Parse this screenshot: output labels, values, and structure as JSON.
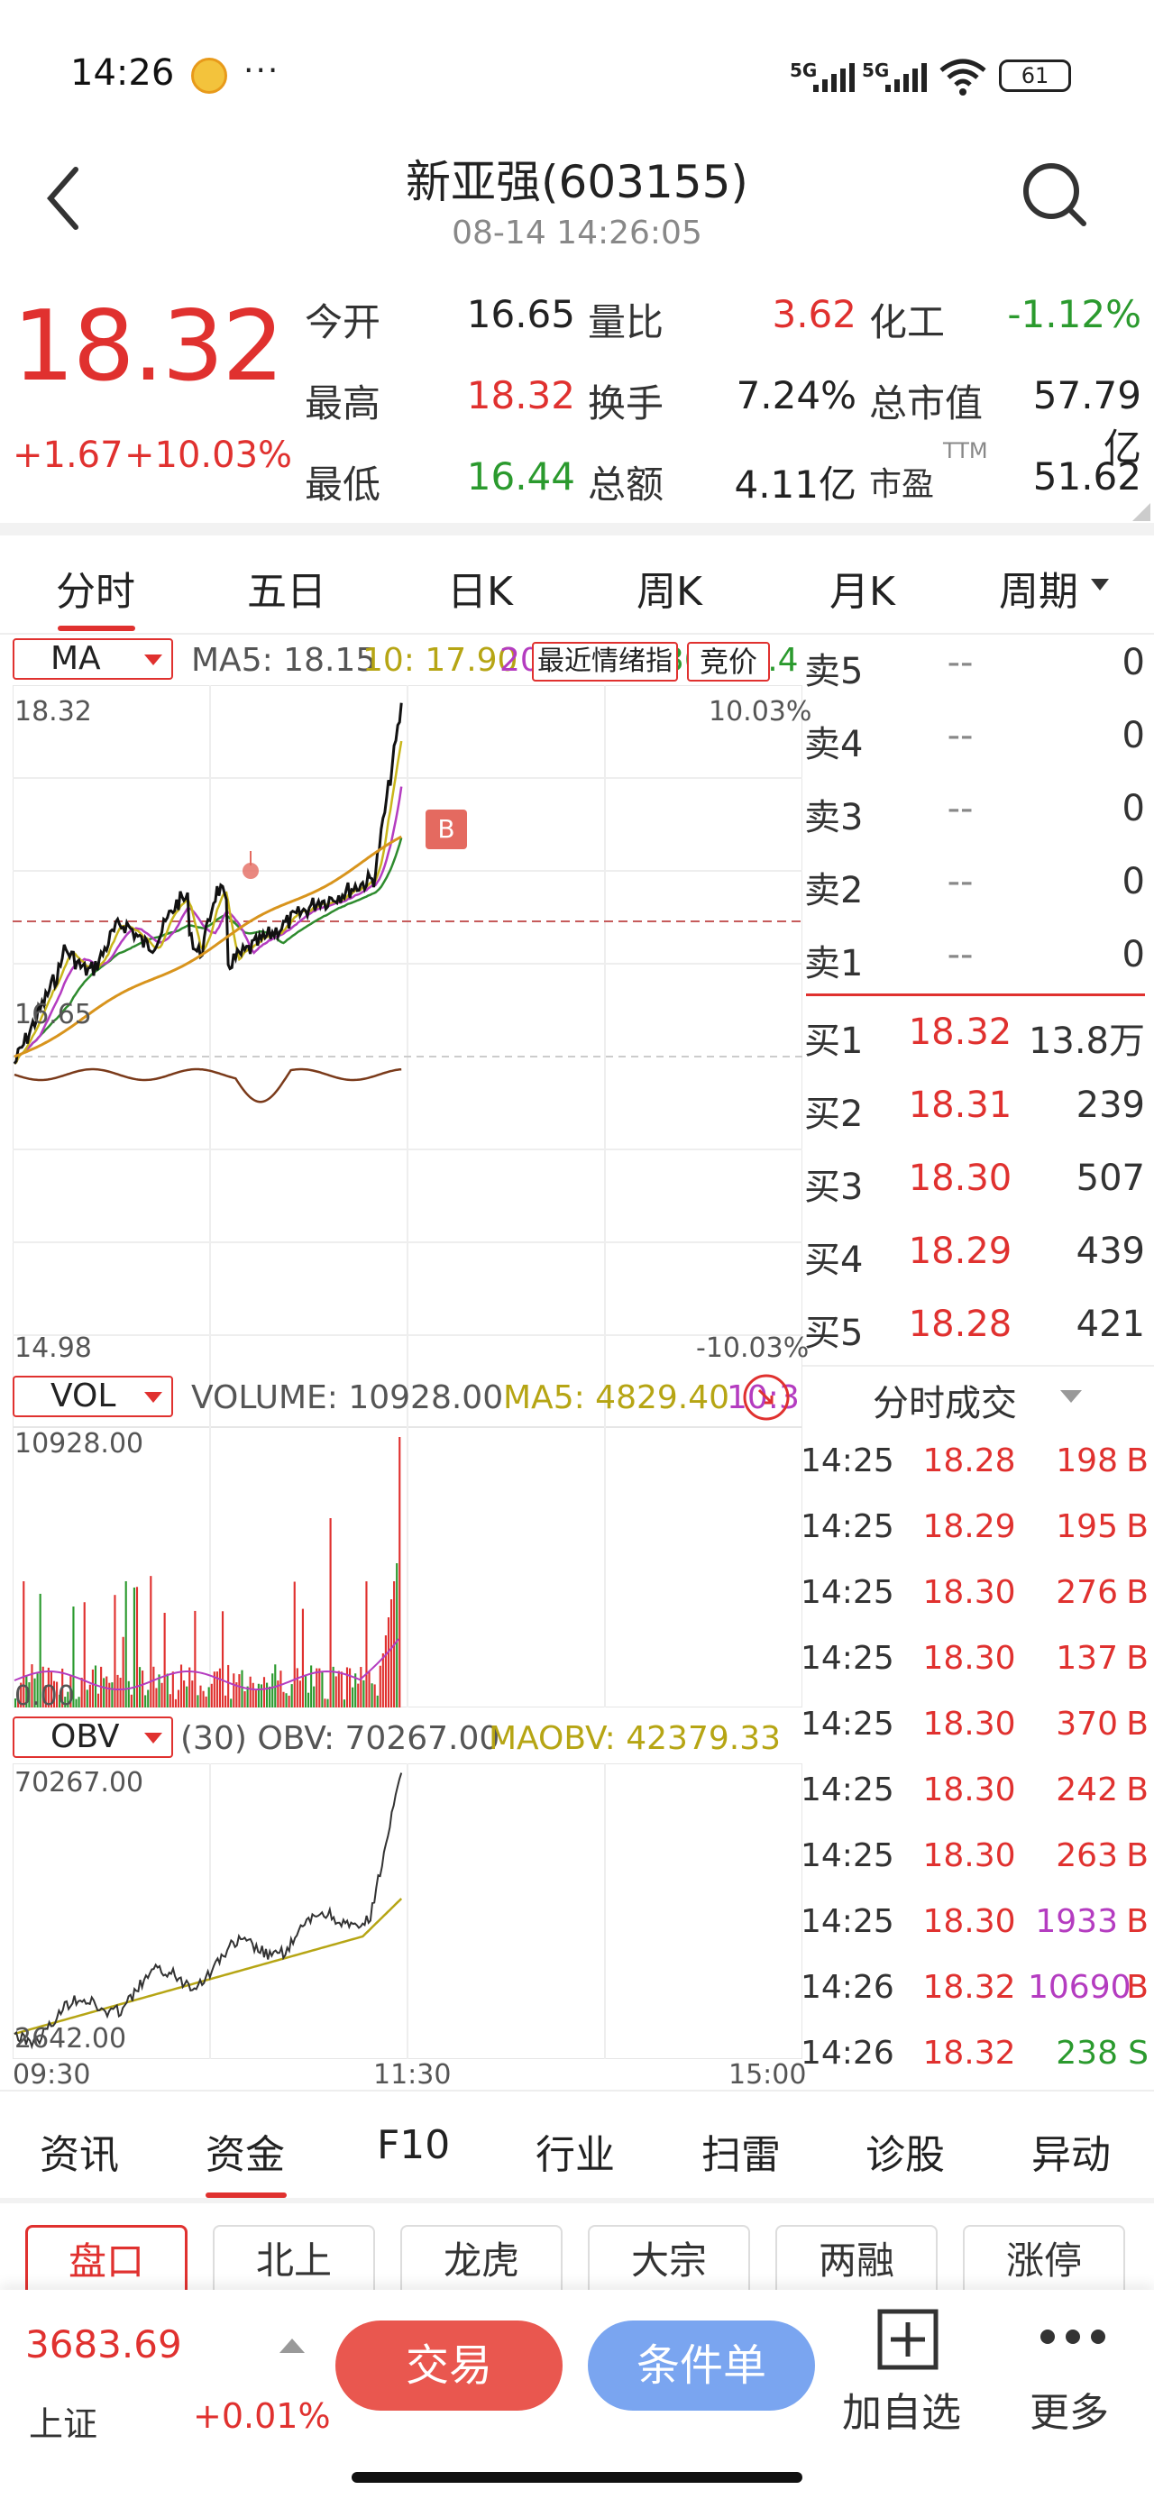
{
  "status": {
    "time": "14:26",
    "dots": "···",
    "sig1": "5G",
    "sig2": "5G",
    "battery": "61"
  },
  "header": {
    "title": "新亚强(603155)",
    "subtime": "08-14 14:26:05"
  },
  "quote": {
    "price": "18.32",
    "change": "+1.67",
    "change_pct": "+10.03%",
    "rows": [
      {
        "l1": "今开",
        "v1": "16.65",
        "c1": "#222222",
        "l2": "量比",
        "v2": "3.62",
        "c2": "#e0312f",
        "l3": "化工",
        "v3": "-1.12%",
        "c3": "#2b9a2e"
      },
      {
        "l1": "最高",
        "v1": "18.32",
        "c1": "#e0312f",
        "l2": "换手",
        "v2": "7.24%",
        "c2": "#222222",
        "l3": "总市值",
        "v3": "57.79亿",
        "c3": "#222222"
      },
      {
        "l1": "最低",
        "v1": "16.44",
        "c1": "#2b9a2e",
        "l2": "总额",
        "v2": "4.11亿",
        "c2": "#222222",
        "l3": "市盈",
        "v3": "51.62",
        "c3": "#222222"
      }
    ],
    "pe_sup": "TTM"
  },
  "period_tabs": [
    "分时",
    "五日",
    "日K",
    "周K",
    "月K",
    "周期"
  ],
  "chart": {
    "ma_sel": "MA",
    "ma5": "MA5: 18.15",
    "ma10": "10: 17.90",
    "ma20": "20: 17.68",
    "ma30": "30: 17.42",
    "recent_btn": "最近情绪指",
    "auction_btn": "竞价",
    "y_top": "18.32",
    "y_mid": "16.65",
    "y_bot": "14.98",
    "pct_top": "10.03%",
    "pct_bot": "-10.03%",
    "marker": "B",
    "vol_sel": "VOL",
    "volume": "VOLUME: 10928.00",
    "vol_ma5": "MA5: 4829.40",
    "vol_ma10": "10:3",
    "vol_top": "10928.00",
    "vol_bot": "0.00",
    "obv_sel": "OBV",
    "obv_text": "(30) OBV: 70267.00",
    "maobv": "MAOBV: 42379.33",
    "obv_top": "70267.00",
    "obv_bot": "2642.00",
    "x_start": "09:30",
    "x_mid": "11:30",
    "x_end": "15:00",
    "colors": {
      "price": "#111111",
      "avg": "#d8941d",
      "ma5": "#c9b61a",
      "ma10": "#b43cc0",
      "ma20": "#2e8b2e",
      "osc": "#7a3a1a",
      "up": "#e0312f",
      "down": "#2b9a2e"
    }
  },
  "orderbook": {
    "sell": [
      {
        "label": "卖5",
        "price": "--",
        "vol": "0"
      },
      {
        "label": "卖4",
        "price": "--",
        "vol": "0"
      },
      {
        "label": "卖3",
        "price": "--",
        "vol": "0"
      },
      {
        "label": "卖2",
        "price": "--",
        "vol": "0"
      },
      {
        "label": "卖1",
        "price": "--",
        "vol": "0"
      }
    ],
    "buy": [
      {
        "label": "买1",
        "price": "18.32",
        "vol": "13.8万"
      },
      {
        "label": "买2",
        "price": "18.31",
        "vol": "239"
      },
      {
        "label": "买3",
        "price": "18.30",
        "vol": "507"
      },
      {
        "label": "买4",
        "price": "18.29",
        "vol": "439"
      },
      {
        "label": "买5",
        "price": "18.28",
        "vol": "421"
      }
    ]
  },
  "trades": {
    "title": "分时成交",
    "rows": [
      {
        "time": "14:25",
        "price": "18.28",
        "vol": "198",
        "side": "B",
        "vc": "#e0312f"
      },
      {
        "time": "14:25",
        "price": "18.29",
        "vol": "195",
        "side": "B",
        "vc": "#e0312f"
      },
      {
        "time": "14:25",
        "price": "18.30",
        "vol": "276",
        "side": "B",
        "vc": "#e0312f"
      },
      {
        "time": "14:25",
        "price": "18.30",
        "vol": "137",
        "side": "B",
        "vc": "#e0312f"
      },
      {
        "time": "14:25",
        "price": "18.30",
        "vol": "370",
        "side": "B",
        "vc": "#e0312f"
      },
      {
        "time": "14:25",
        "price": "18.30",
        "vol": "242",
        "side": "B",
        "vc": "#e0312f"
      },
      {
        "time": "14:25",
        "price": "18.30",
        "vol": "263",
        "side": "B",
        "vc": "#e0312f"
      },
      {
        "time": "14:25",
        "price": "18.30",
        "vol": "1933",
        "side": "B",
        "vc": "#b43cc0"
      },
      {
        "time": "14:26",
        "price": "18.32",
        "vol": "10690",
        "side": "B",
        "vc": "#b43cc0"
      },
      {
        "time": "14:26",
        "price": "18.32",
        "vol": "238",
        "side": "S",
        "vc": "#2b9a2e"
      }
    ]
  },
  "bottom_tabs": [
    "资讯",
    "资金",
    "F10",
    "行业",
    "扫雷",
    "诊股",
    "异动"
  ],
  "chips": [
    "盘口",
    "北上",
    "龙虎",
    "大宗",
    "两融",
    "涨停"
  ],
  "bottombar": {
    "index_value": "3683.69",
    "index_name": "上证",
    "index_pct": "+0.01%",
    "trade": "交易",
    "cond": "条件单",
    "add": "加自选",
    "more": "更多"
  }
}
